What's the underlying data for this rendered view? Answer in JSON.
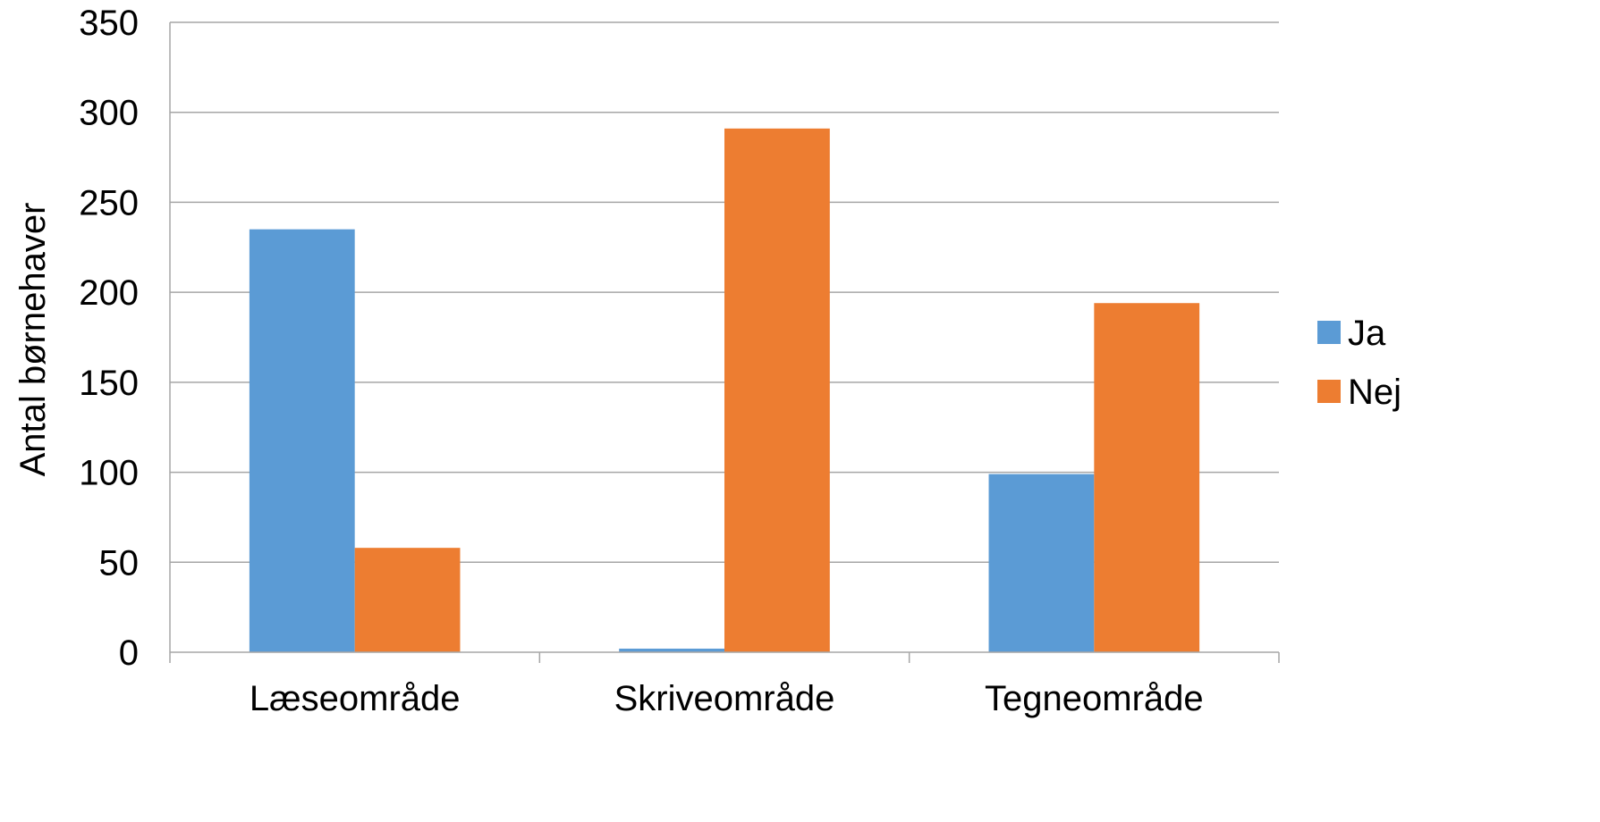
{
  "chart_data": {
    "type": "bar",
    "title": "",
    "xlabel": "",
    "ylabel": "Antal børnehaver",
    "categories": [
      "Læseområde",
      "Skriveområde",
      "Tegneområde"
    ],
    "series": [
      {
        "name": "Ja",
        "color": "#5B9BD5",
        "values": [
          235,
          2,
          99
        ]
      },
      {
        "name": "Nej",
        "color": "#ED7D31",
        "values": [
          58,
          291,
          194
        ]
      }
    ],
    "ylim": [
      0,
      350
    ],
    "yticks": [
      0,
      50,
      100,
      150,
      200,
      250,
      300,
      350
    ],
    "grid": true,
    "legend_position": "right"
  }
}
